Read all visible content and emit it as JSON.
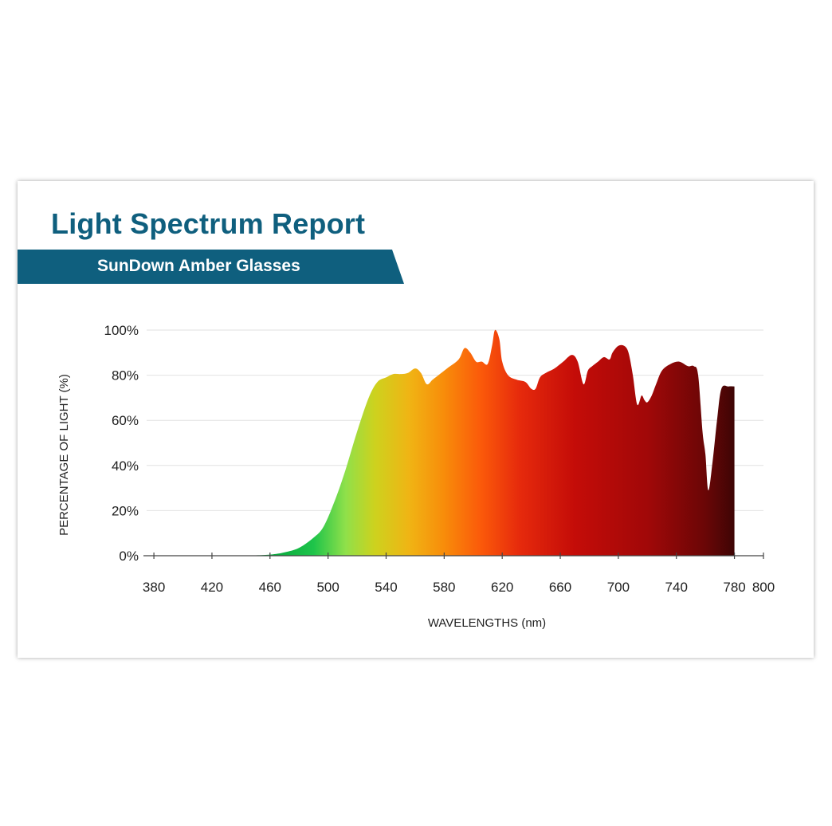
{
  "header": {
    "title": "Light Spectrum Report",
    "subtitle": "SunDown Amber Glasses"
  },
  "colors": {
    "brand": "#0f5f7e",
    "gradient": [
      {
        "nm": 462,
        "color": "#08a83e"
      },
      {
        "nm": 490,
        "color": "#1ec44a"
      },
      {
        "nm": 512,
        "color": "#8fe04a"
      },
      {
        "nm": 532,
        "color": "#cdd21e"
      },
      {
        "nm": 556,
        "color": "#f0b414"
      },
      {
        "nm": 580,
        "color": "#f88c0a"
      },
      {
        "nm": 605,
        "color": "#fb5a0a"
      },
      {
        "nm": 632,
        "color": "#e62a0c"
      },
      {
        "nm": 670,
        "color": "#c40c08"
      },
      {
        "nm": 720,
        "color": "#a10808"
      },
      {
        "nm": 760,
        "color": "#6a0606"
      },
      {
        "nm": 780,
        "color": "#3e0505"
      }
    ]
  },
  "chart_data": {
    "type": "area",
    "xlabel": "WAVELENGTHS (nm)",
    "ylabel": "PERCENTAGE OF LIGHT (%)",
    "xlim": [
      375,
      800
    ],
    "ylim": [
      0,
      100
    ],
    "xticks": [
      380,
      420,
      460,
      500,
      540,
      580,
      620,
      660,
      700,
      740,
      780,
      800
    ],
    "xtick_labels": [
      "380",
      "420",
      "460",
      "500",
      "540",
      "580",
      "620",
      "660",
      "700",
      "740",
      "780",
      "800"
    ],
    "yticks": [
      0,
      20,
      40,
      60,
      80,
      100
    ],
    "ytick_labels": [
      "0%",
      "20%",
      "40%",
      "60%",
      "80%",
      "100%"
    ],
    "grid": true,
    "series": [
      {
        "x": [
          442,
          460,
          470,
          480,
          490,
          497,
          505,
          512,
          520,
          528,
          534,
          540,
          545,
          550,
          555,
          560,
          564,
          568,
          572,
          576,
          582,
          590,
          594,
          598,
          602,
          606,
          610,
          613,
          615,
          618,
          620,
          624,
          630,
          636,
          640,
          643,
          646,
          650,
          656,
          662,
          668,
          672,
          676,
          679,
          682,
          686,
          690,
          694,
          696,
          700,
          704,
          707,
          710,
          713,
          716,
          718,
          720,
          723,
          726,
          730,
          736,
          742,
          748,
          752,
          755,
          758,
          760,
          762,
          765,
          768,
          771,
          776,
          780
        ],
        "y": [
          0,
          0.5,
          1.5,
          3.5,
          8,
          13,
          25,
          38,
          55,
          70,
          77,
          79,
          80.5,
          80.5,
          81,
          83,
          81,
          76,
          78,
          80,
          83,
          87,
          92,
          90,
          86,
          86,
          85,
          93,
          100,
          96,
          86,
          80,
          78,
          77,
          74,
          74,
          79,
          81,
          83,
          86,
          89,
          86,
          76,
          82,
          84,
          86,
          88,
          87,
          90,
          93,
          93,
          90,
          80,
          67,
          71,
          69,
          68,
          71,
          76,
          82,
          85,
          86,
          84,
          84,
          80,
          55,
          45,
          29,
          42,
          60,
          74,
          75,
          75
        ]
      }
    ]
  }
}
